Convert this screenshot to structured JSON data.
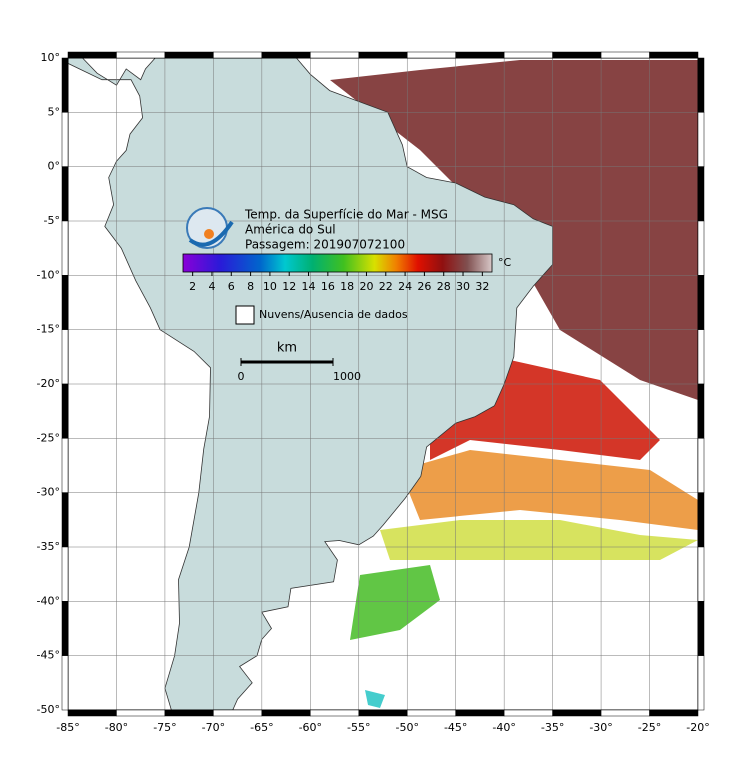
{
  "map": {
    "title": [
      "Temp. da Superfície do Mar - MSG",
      "América do Sul",
      "Passagem: 201907072100"
    ],
    "lonlim": [
      -85,
      -20
    ],
    "latlim": [
      -50,
      10
    ],
    "lonticks": [
      {
        "value": -85,
        "label": "-85°"
      },
      {
        "value": -80,
        "label": "-80°"
      },
      {
        "value": -75,
        "label": "-75°"
      },
      {
        "value": -70,
        "label": "-70°"
      },
      {
        "value": -65,
        "label": "-65°"
      },
      {
        "value": -60,
        "label": "-60°"
      },
      {
        "value": -55,
        "label": "-55°"
      },
      {
        "value": -50,
        "label": "-50°"
      },
      {
        "value": -45,
        "label": "-45°"
      },
      {
        "value": -40,
        "label": "-40°"
      },
      {
        "value": -35,
        "label": "-35°"
      },
      {
        "value": -30,
        "label": "-30°"
      },
      {
        "value": -25,
        "label": "-25°"
      },
      {
        "value": -20,
        "label": "-20°"
      }
    ],
    "latticks": [
      {
        "value": 10,
        "label": "10°"
      },
      {
        "value": 5,
        "label": "5°"
      },
      {
        "value": 0,
        "label": "0°"
      },
      {
        "value": -5,
        "label": "-5°"
      },
      {
        "value": -10,
        "label": "-10°"
      },
      {
        "value": -15,
        "label": "-15°"
      },
      {
        "value": -20,
        "label": "-20°"
      },
      {
        "value": -25,
        "label": "-25°"
      },
      {
        "value": -30,
        "label": "-30°"
      },
      {
        "value": -35,
        "label": "-35°"
      },
      {
        "value": -40,
        "label": "-40°"
      },
      {
        "value": -45,
        "label": "-45°"
      },
      {
        "value": -50,
        "label": "-50°"
      }
    ],
    "grid": true,
    "colorbar": {
      "lim": [
        1,
        33
      ],
      "ticks": [
        2,
        4,
        6,
        8,
        10,
        12,
        14,
        16,
        18,
        20,
        22,
        24,
        26,
        28,
        30,
        32
      ],
      "unit": "°C"
    },
    "legend": "Nuvens/Ausencia de dados",
    "scalebar": {
      "unit": "km",
      "ticks": [
        0,
        1000
      ]
    }
  }
}
